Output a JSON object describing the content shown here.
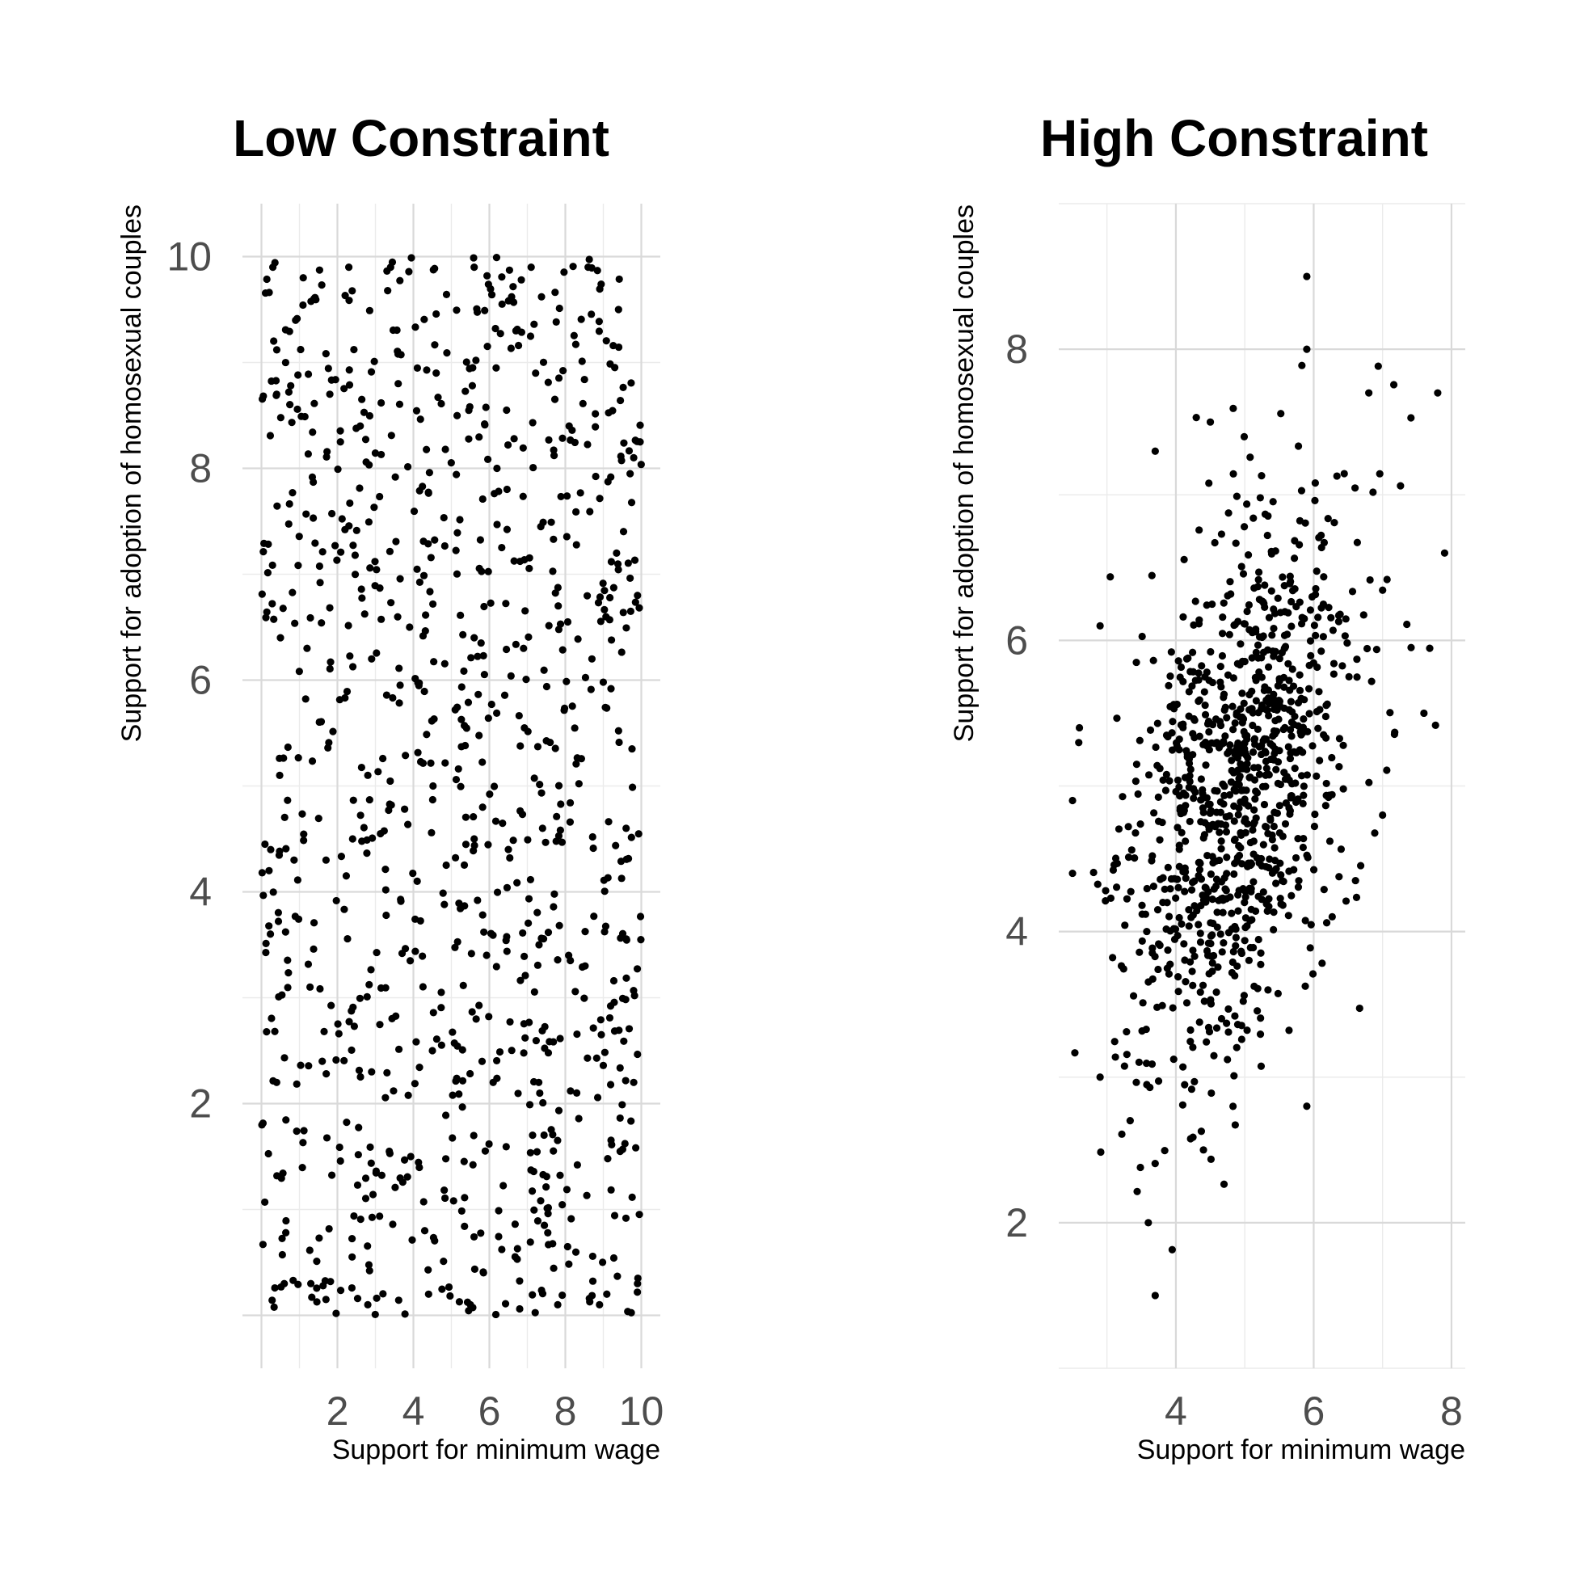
{
  "chart_data": [
    {
      "type": "scatter",
      "title": "Low Constraint",
      "xlabel": "Support for minimum wage",
      "ylabel": "Support for adoption of homosexual couples",
      "xlim": [
        -0.5,
        10.5
      ],
      "ylim": [
        -0.5,
        10.5
      ],
      "xticks": [
        2,
        4,
        6,
        8,
        10
      ],
      "yticks": [
        2,
        4,
        6,
        8,
        10
      ],
      "grid": true,
      "point_color": "#000000",
      "n_points": 1000,
      "distribution": "uniform over [0, 10] x [0, 10], no correlation",
      "points": [
        [
          0.3,
          9.9
        ],
        [
          1.1,
          9.8
        ],
        [
          2.3,
          9.9
        ],
        [
          3.4,
          9.9
        ],
        [
          5.6,
          9.9
        ],
        [
          7.1,
          9.9
        ],
        [
          8.6,
          9.9
        ],
        [
          9.4,
          9.5
        ],
        [
          0.4,
          8.7
        ],
        [
          1.8,
          8.7
        ],
        [
          2.6,
          8.4
        ],
        [
          3.6,
          8.8
        ],
        [
          4.6,
          8.9
        ],
        [
          6.2,
          8.0
        ],
        [
          8.1,
          8.4
        ],
        [
          9.8,
          8.1
        ],
        [
          0.5,
          6.4
        ],
        [
          1.2,
          6.3
        ],
        [
          2.9,
          6.2
        ],
        [
          3.9,
          6.5
        ],
        [
          5.6,
          6.4
        ],
        [
          6.9,
          6.3
        ],
        [
          8.7,
          6.2
        ],
        [
          9.9,
          6.8
        ],
        [
          0.2,
          4.2
        ],
        [
          1.7,
          4.3
        ],
        [
          2.4,
          4.5
        ],
        [
          4.1,
          4.1
        ],
        [
          5.6,
          4.5
        ],
        [
          6.5,
          4.4
        ],
        [
          7.4,
          4.6
        ],
        [
          9.6,
          4.6
        ],
        [
          0.4,
          2.2
        ],
        [
          1.6,
          2.4
        ],
        [
          2.9,
          2.3
        ],
        [
          4.5,
          2.5
        ],
        [
          6.1,
          2.2
        ],
        [
          7.3,
          2.2
        ],
        [
          8.3,
          2.1
        ],
        [
          9.8,
          2.2
        ],
        [
          0.6,
          0.3
        ],
        [
          1.3,
          0.3
        ],
        [
          2.8,
          0.1
        ],
        [
          4.4,
          0.2
        ],
        [
          5.5,
          0.1
        ],
        [
          7.8,
          0.1
        ],
        [
          8.9,
          0.1
        ],
        [
          9.9,
          0.3
        ]
      ]
    },
    {
      "type": "scatter",
      "title": "High Constraint",
      "xlabel": "Support for minimum wage",
      "ylabel": "Support for adoption of homosexual couples",
      "xlim": [
        2.3,
        8.2
      ],
      "ylim": [
        1.0,
        9.0
      ],
      "xticks": [
        4,
        6,
        8
      ],
      "yticks": [
        2,
        4,
        6,
        8
      ],
      "grid": true,
      "point_color": "#000000",
      "n_points": 1000,
      "distribution": "bivariate normal, mean x 5.0, mean y 5.0, sd x 0.85, sd y 1.0, correlation 0.45",
      "points": [
        [
          5.9,
          8.5
        ],
        [
          5.9,
          8.0
        ],
        [
          7.8,
          7.7
        ],
        [
          6.8,
          7.7
        ],
        [
          4.5,
          7.5
        ],
        [
          3.7,
          7.3
        ],
        [
          7.9,
          6.6
        ],
        [
          2.9,
          6.1
        ],
        [
          2.6,
          5.4
        ],
        [
          7.6,
          5.5
        ],
        [
          2.5,
          4.9
        ],
        [
          7.0,
          4.8
        ],
        [
          2.5,
          4.4
        ],
        [
          2.9,
          3.0
        ],
        [
          5.9,
          2.8
        ],
        [
          4.4,
          2.5
        ],
        [
          3.6,
          2.0
        ],
        [
          3.7,
          1.5
        ]
      ]
    }
  ]
}
